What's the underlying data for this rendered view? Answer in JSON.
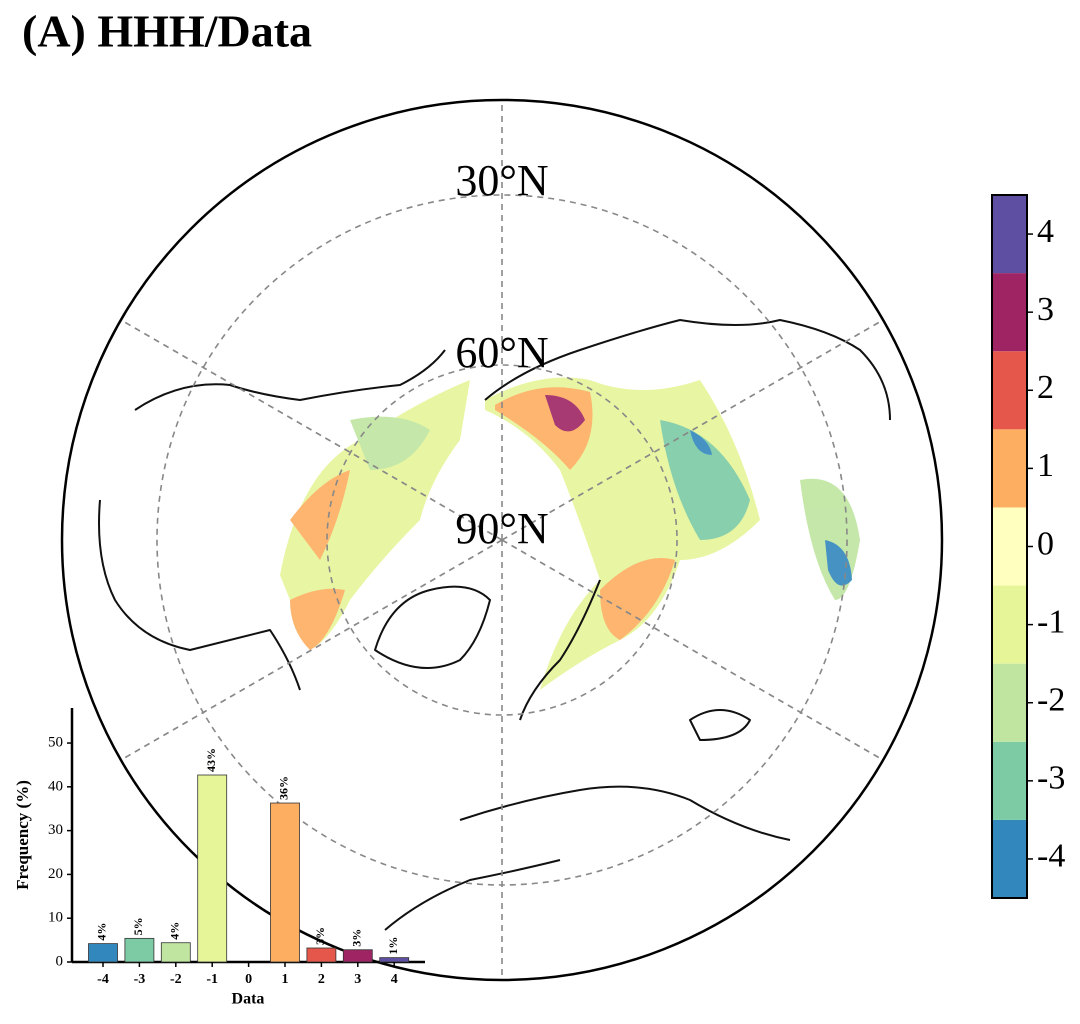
{
  "title": "(A) HHH/Data",
  "map": {
    "lat_labels": [
      "30°N",
      "60°N",
      "90°N"
    ]
  },
  "colorbar": {
    "lim": [
      -4.5,
      4.5
    ],
    "ticks": [
      -4,
      -3,
      -2,
      -1,
      0,
      1,
      2,
      3,
      4
    ],
    "colors": [
      "#3288bd",
      "#7ccba5",
      "#bfe5a0",
      "#e6f598",
      "#ffffbf",
      "#fdae61",
      "#e5574a",
      "#9e2464",
      "#5e4fa2"
    ]
  },
  "chart_data": {
    "type": "bar",
    "xlabel": "Data",
    "ylabel": "Frequency (%)",
    "categories": [
      "-4",
      "-3",
      "-2",
      "-1",
      "0",
      "1",
      "2",
      "3",
      "4"
    ],
    "values": [
      4.2,
      5.4,
      4.4,
      42.7,
      0,
      36.3,
      3.2,
      2.8,
      1.0
    ],
    "value_labels": [
      "4%",
      "5%",
      "4%",
      "43%",
      null,
      "36%",
      "3%",
      "3%",
      "1%"
    ],
    "colors": [
      "#3288bd",
      "#7ccba5",
      "#bfe5a0",
      "#e6f598",
      "#ffffbf",
      "#fdae61",
      "#e5574a",
      "#9e2464",
      "#5e4fa2"
    ],
    "ylim": [
      0,
      58
    ],
    "yticks": [
      0,
      10,
      20,
      30,
      40,
      50
    ]
  }
}
